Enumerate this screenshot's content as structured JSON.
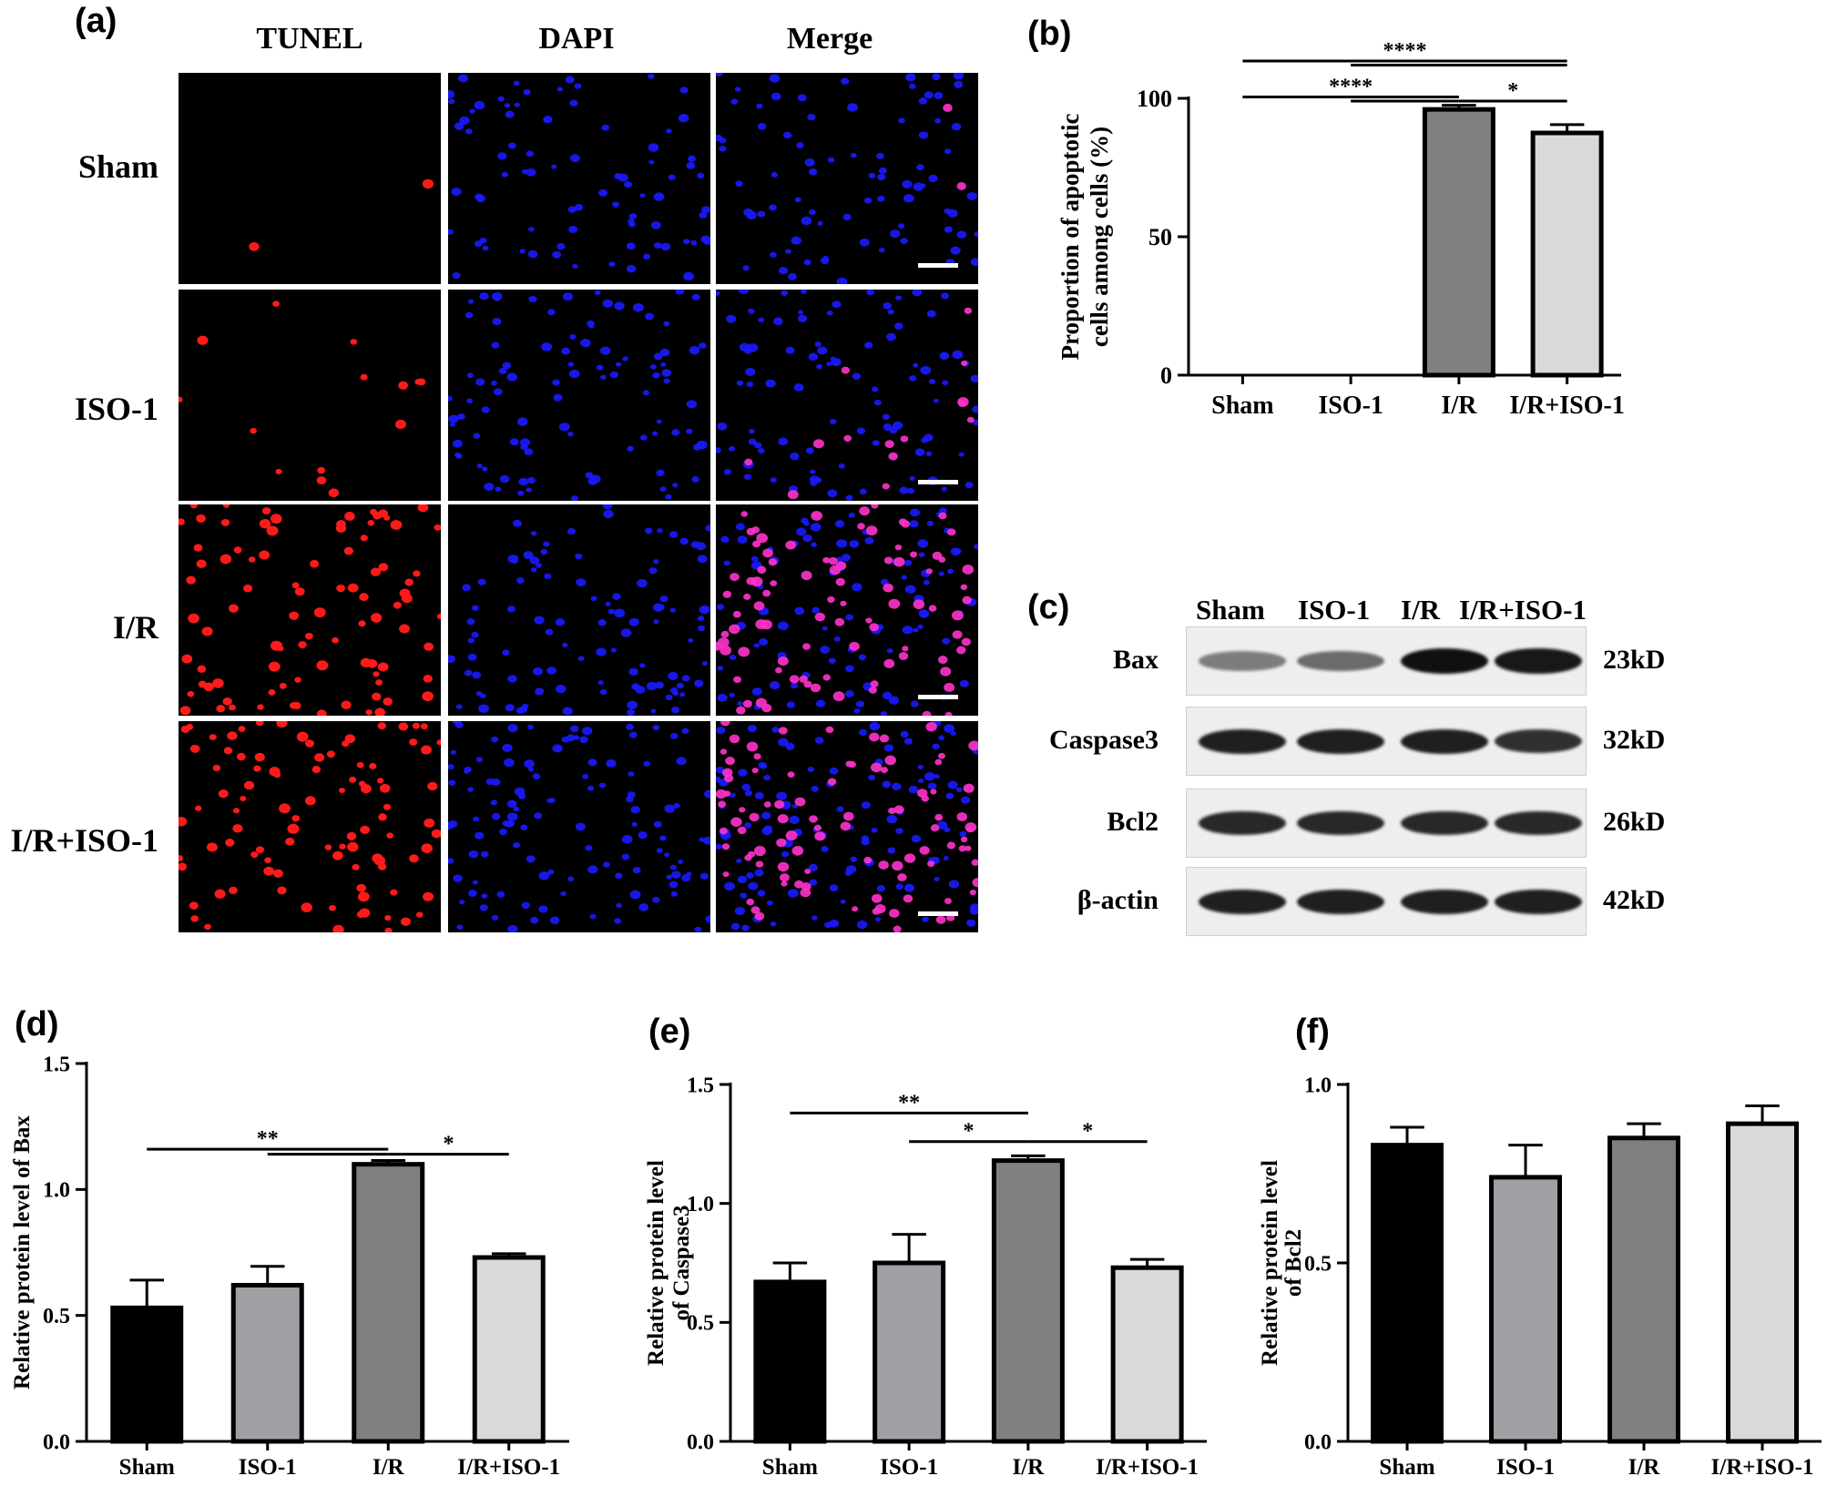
{
  "panel_labels": {
    "a": "(a)",
    "b": "(b)",
    "c": "(c)",
    "d": "(d)",
    "e": "(e)",
    "f": "(f)"
  },
  "microscopy": {
    "columns": [
      "TUNEL",
      "DAPI",
      "Merge"
    ],
    "rows": [
      "Sham",
      "ISO-1",
      "I/R",
      "I/R+ISO-1"
    ],
    "colors": {
      "tunel": "#ff1a1a",
      "dapi": "#1a1aff",
      "merge_overlap": "#ff33cc"
    }
  },
  "western_blot": {
    "lanes": [
      "Sham",
      "ISO-1",
      "I/R",
      "I/R+ISO-1"
    ],
    "proteins": [
      {
        "name": "Bax",
        "kd": "23kD",
        "intensity": [
          0.35,
          0.45,
          1.0,
          0.95
        ]
      },
      {
        "name": "Caspase3",
        "kd": "32kD",
        "intensity": [
          0.9,
          0.9,
          0.9,
          0.8
        ]
      },
      {
        "name": "Bcl2",
        "kd": "26kD",
        "intensity": [
          0.85,
          0.85,
          0.85,
          0.85
        ]
      },
      {
        "name": "β-actin",
        "kd": "42kD",
        "intensity": [
          0.9,
          0.9,
          0.9,
          0.9
        ]
      }
    ]
  },
  "chart_data": [
    {
      "id": "b",
      "type": "bar",
      "categories": [
        "Sham",
        "ISO-1",
        "I/R",
        "I/R+ISO-1"
      ],
      "values": [
        0,
        0,
        96,
        87.5
      ],
      "errors": [
        0,
        0,
        1.5,
        3
      ],
      "ylabel": "Proportion of apoptotic cells among cells (%)",
      "ylabel_lines": [
        "Proportion of apoptotic",
        "cells among cells (%)"
      ],
      "ylim": [
        0,
        100
      ],
      "yticks": [
        0,
        50,
        100
      ],
      "ytick_labels": [
        "0",
        "50",
        "100"
      ],
      "bar_colors": [
        "#000000",
        "#a0a0a4",
        "#808080",
        "#d9d9d9"
      ],
      "significance": [
        {
          "from": 0,
          "to": 3,
          "label": "****",
          "y": 113.5
        },
        {
          "from": 1,
          "to": 3,
          "label": "",
          "y": 112
        },
        {
          "from": 0,
          "to": 2,
          "label": "****",
          "y": 100.5
        },
        {
          "from": 1,
          "to": 2,
          "label": "",
          "y": 99
        },
        {
          "from": 2,
          "to": 3,
          "label": "*",
          "y": 99
        }
      ]
    },
    {
      "id": "d",
      "type": "bar",
      "categories": [
        "Sham",
        "ISO-1",
        "I/R",
        "I/R+ISO-1"
      ],
      "values": [
        0.53,
        0.62,
        1.1,
        0.73
      ],
      "errors": [
        0.11,
        0.075,
        0.015,
        0.015
      ],
      "ylabel": "Relative protein level of Bax",
      "ylabel_lines": [
        "Relative protein level of Bax"
      ],
      "ylim": [
        0,
        1.5
      ],
      "yticks": [
        0,
        0.5,
        1.0,
        1.5
      ],
      "ytick_labels": [
        "0.0",
        "0.5",
        "1.0",
        "1.5"
      ],
      "bar_colors": [
        "#000000",
        "#a0a0a4",
        "#808080",
        "#d9d9d9"
      ],
      "significance": [
        {
          "from": 0,
          "to": 2,
          "label": "**",
          "y": 1.16
        },
        {
          "from": 1,
          "to": 2,
          "label": "",
          "y": 1.14
        },
        {
          "from": 2,
          "to": 3,
          "label": "*",
          "y": 1.14
        }
      ]
    },
    {
      "id": "e",
      "type": "bar",
      "categories": [
        "Sham",
        "ISO-1",
        "I/R",
        "I/R+ISO-1"
      ],
      "values": [
        0.67,
        0.75,
        1.18,
        0.73
      ],
      "errors": [
        0.08,
        0.12,
        0.02,
        0.035
      ],
      "ylabel": "Relative protein level of Caspase3",
      "ylabel_lines": [
        "Relative protein level",
        "of Caspase3"
      ],
      "ylim": [
        0,
        1.5
      ],
      "yticks": [
        0,
        0.5,
        1.0,
        1.5
      ],
      "ytick_labels": [
        "0.0",
        "0.5",
        "1.0",
        "1.5"
      ],
      "bar_colors": [
        "#000000",
        "#a0a0a4",
        "#808080",
        "#d9d9d9"
      ],
      "significance": [
        {
          "from": 0,
          "to": 2,
          "label": "**",
          "y": 1.38
        },
        {
          "from": 1,
          "to": 2,
          "label": "*",
          "y": 1.26
        },
        {
          "from": 2,
          "to": 3,
          "label": "*",
          "y": 1.26
        }
      ]
    },
    {
      "id": "f",
      "type": "bar",
      "categories": [
        "Sham",
        "ISO-1",
        "I/R",
        "I/R+ISO-1"
      ],
      "values": [
        0.83,
        0.74,
        0.85,
        0.89
      ],
      "errors": [
        0.05,
        0.09,
        0.04,
        0.05
      ],
      "ylabel": "Relative protein level of Bcl2",
      "ylabel_lines": [
        "Relative protein level",
        "of Bcl2"
      ],
      "ylim": [
        0,
        1.0
      ],
      "yticks": [
        0,
        0.5,
        1.0
      ],
      "ytick_labels": [
        "0.0",
        "0.5",
        "1.0"
      ],
      "bar_colors": [
        "#000000",
        "#a0a0a4",
        "#808080",
        "#d9d9d9"
      ],
      "significance": []
    }
  ]
}
